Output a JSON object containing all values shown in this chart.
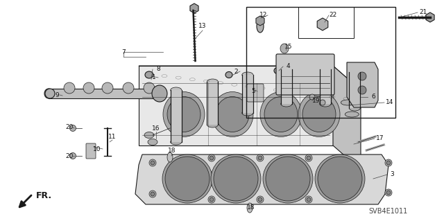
{
  "bg_color": "#ffffff",
  "line_color": "#1a1a1a",
  "diagram_code": "SVB4E1011",
  "fig_width": 6.4,
  "fig_height": 3.19,
  "dpi": 100,
  "font_size": 6.5,
  "gray_fill": "#b0b0b0",
  "dark_fill": "#555555",
  "mid_fill": "#888888",
  "light_fill": "#d0d0d0"
}
